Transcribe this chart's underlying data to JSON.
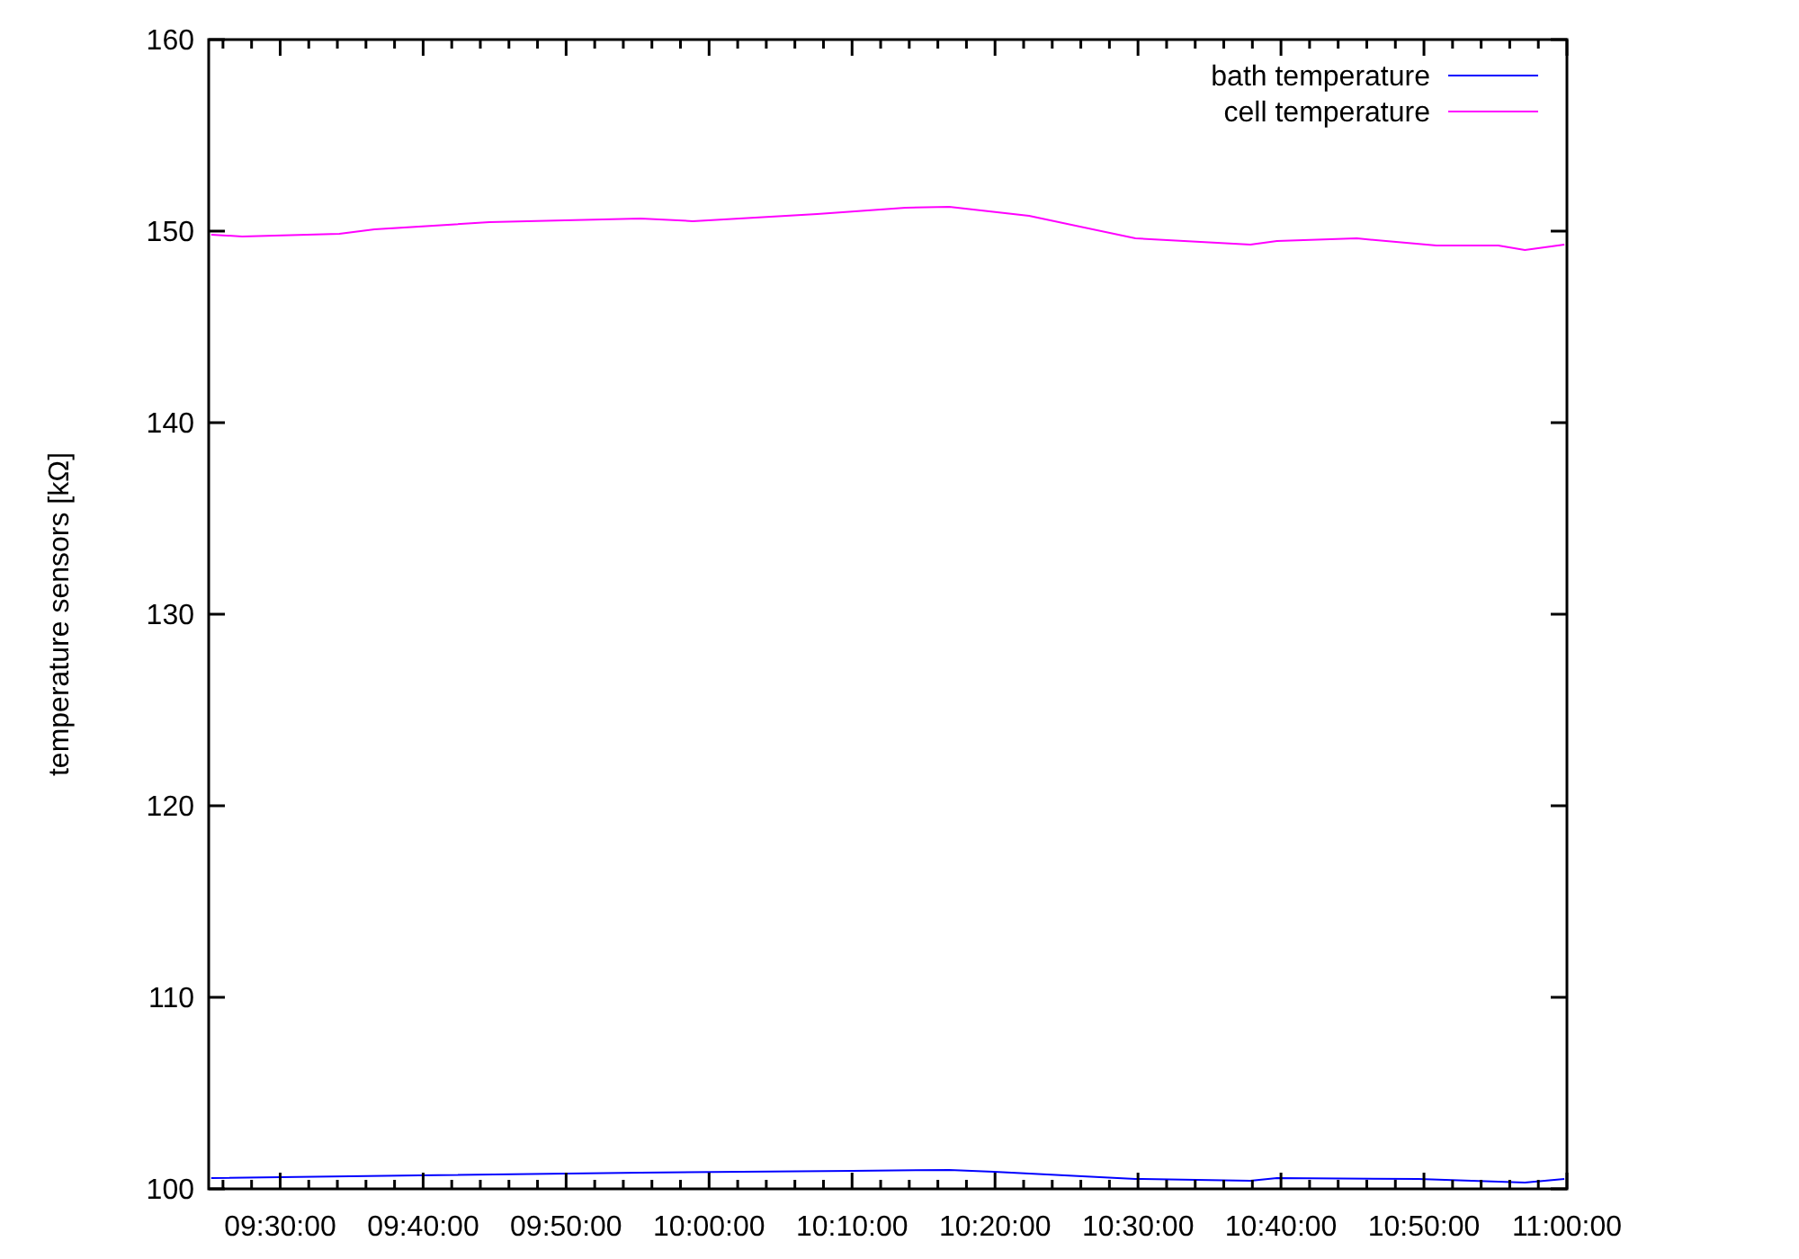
{
  "chart_data": {
    "type": "line",
    "ylabel": "temperature sensors [kΩ]",
    "xlim": [
      9.41667,
      11
    ],
    "ylim": [
      100,
      160
    ],
    "yticks": [
      100,
      110,
      120,
      130,
      140,
      150,
      160
    ],
    "xticks": [
      {
        "value": 9.5,
        "label": "09:30:00"
      },
      {
        "value": 9.66667,
        "label": "09:40:00"
      },
      {
        "value": 9.83333,
        "label": "09:50:00"
      },
      {
        "value": 10,
        "label": "10:00:00"
      },
      {
        "value": 10.16667,
        "label": "10:10:00"
      },
      {
        "value": 10.33333,
        "label": "10:20:00"
      },
      {
        "value": 10.5,
        "label": "10:30:00"
      },
      {
        "value": 10.66667,
        "label": "10:40:00"
      },
      {
        "value": 10.83333,
        "label": "10:50:00"
      },
      {
        "value": 11,
        "label": "11:00:00"
      },
      {
        "value": 9.43333,
        "label": null
      },
      {
        "value": 9.46667,
        "label": null
      },
      {
        "value": 9.53333,
        "label": null
      },
      {
        "value": 9.56667,
        "label": null
      },
      {
        "value": 9.6,
        "label": null
      },
      {
        "value": 9.63333,
        "label": null
      },
      {
        "value": 9.7,
        "label": null
      },
      {
        "value": 9.73333,
        "label": null
      },
      {
        "value": 9.76667,
        "label": null
      },
      {
        "value": 9.8,
        "label": null
      },
      {
        "value": 9.86667,
        "label": null
      },
      {
        "value": 9.9,
        "label": null
      },
      {
        "value": 9.93333,
        "label": null
      },
      {
        "value": 9.96667,
        "label": null
      },
      {
        "value": 10.03333,
        "label": null
      },
      {
        "value": 10.06667,
        "label": null
      },
      {
        "value": 10.1,
        "label": null
      },
      {
        "value": 10.13333,
        "label": null
      },
      {
        "value": 10.2,
        "label": null
      },
      {
        "value": 10.23333,
        "label": null
      },
      {
        "value": 10.26667,
        "label": null
      },
      {
        "value": 10.3,
        "label": null
      },
      {
        "value": 10.36667,
        "label": null
      },
      {
        "value": 10.4,
        "label": null
      },
      {
        "value": 10.43333,
        "label": null
      },
      {
        "value": 10.46667,
        "label": null
      },
      {
        "value": 10.53333,
        "label": null
      },
      {
        "value": 10.56667,
        "label": null
      },
      {
        "value": 10.6,
        "label": null
      },
      {
        "value": 10.63333,
        "label": null
      },
      {
        "value": 10.7,
        "label": null
      },
      {
        "value": 10.73333,
        "label": null
      },
      {
        "value": 10.76667,
        "label": null
      },
      {
        "value": 10.8,
        "label": null
      },
      {
        "value": 10.86667,
        "label": null
      },
      {
        "value": 10.9,
        "label": null
      },
      {
        "value": 10.93333,
        "label": null
      },
      {
        "value": 10.96667,
        "label": null
      }
    ],
    "legend": "top right",
    "grid": false,
    "line_style": "solid",
    "series": [
      {
        "name": "bath temperature",
        "color": "#0000ff",
        "x": [
          9.4196,
          9.662,
          9.92,
          10.167,
          10.28,
          10.332,
          10.497,
          10.631,
          10.662,
          10.827,
          10.951,
          10.997
        ],
        "values": [
          100.56,
          100.7,
          100.85,
          100.94,
          100.99,
          100.89,
          100.52,
          100.42,
          100.56,
          100.52,
          100.33,
          100.52
        ]
      },
      {
        "name": "cell temperature",
        "color": "#ff00ff",
        "x": [
          9.4196,
          9.4557,
          9.569,
          9.61,
          9.744,
          9.92,
          9.981,
          10.126,
          10.229,
          10.28,
          10.373,
          10.497,
          10.631,
          10.662,
          10.755,
          10.848,
          10.92,
          10.951,
          10.997
        ],
        "values": [
          149.81,
          149.72,
          149.86,
          150.09,
          150.47,
          150.66,
          150.52,
          150.89,
          151.22,
          151.27,
          150.8,
          149.62,
          149.3,
          149.48,
          149.62,
          149.25,
          149.25,
          149.01,
          149.3
        ]
      }
    ]
  }
}
